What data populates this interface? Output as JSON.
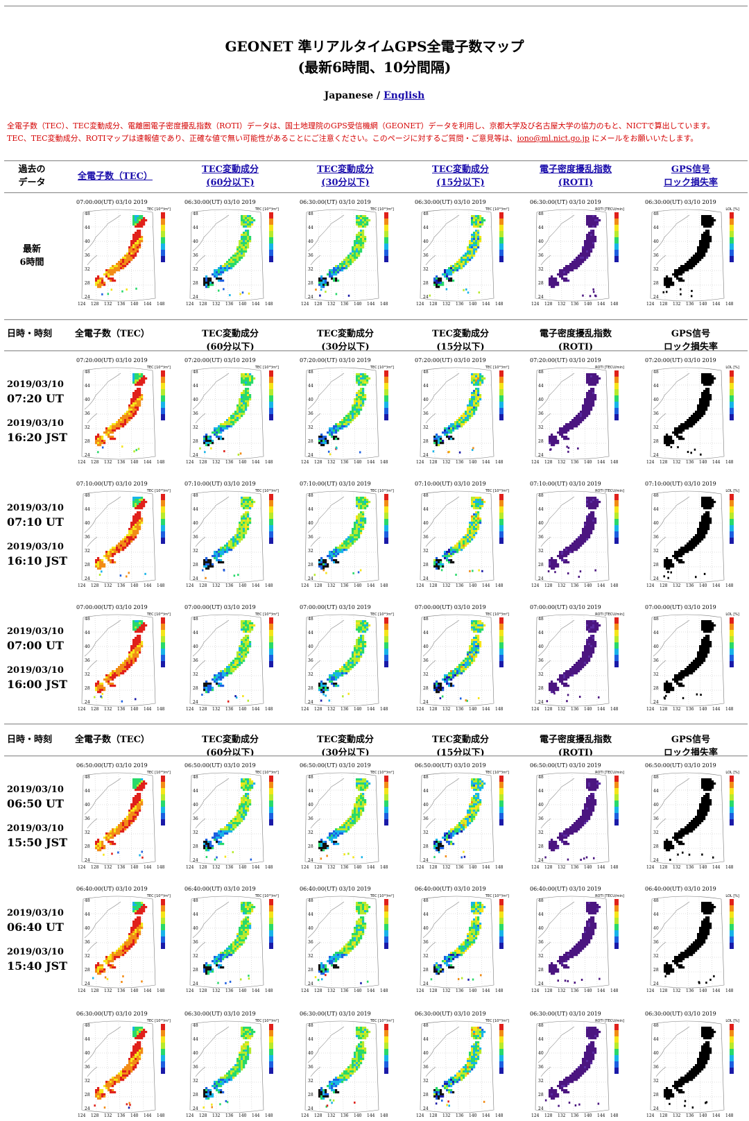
{
  "title": {
    "line1": "GEONET 準リアルタイムGPS全電子数マップ",
    "line2": "(最新6時間、10分間隔)"
  },
  "lang": {
    "current": "Japanese",
    "sep": " / ",
    "link": "English"
  },
  "notice": {
    "line1": "全電子数（TEC）、TEC変動成分、電離圏電子密度擾乱指数（ROTI）データは、国土地理院のGPS受信機網（GEONET）データを利用し、京都大学及び名古屋大学の協力のもと、NICTで算出しています。",
    "line2_pre": "TEC、TEC変動成分、ROTIマップは速報値であり、正確な値で無い可能性があることにご注意ください。このページに対するご質問・ご意見等は、",
    "email": "iono@ml.nict.go.jp",
    "line2_post": " にメールをお願いいたします。"
  },
  "past_header": {
    "label1": "過去の",
    "label2": "データ",
    "c1": "全電子数（TEC）",
    "c2a": "TEC変動成分",
    "c2b": "(60分以下)",
    "c3a": "TEC変動成分",
    "c3b": "(30分以下)",
    "c4a": "TEC変動成分",
    "c4b": "(15分以下)",
    "c5a": "電子密度擾乱指数",
    "c5b": "(ROTI)",
    "c6a": "GPS信号",
    "c6b": "ロック損失率"
  },
  "latest": {
    "label1": "最新",
    "label2": "6時間",
    "maps": [
      {
        "stamp": "07:00:00(UT)  03/10 2019",
        "unit": "TEC [10¹⁶/m²]"
      },
      {
        "stamp": "06:30:00(UT)  03/10 2019",
        "unit": "TEC [10¹⁶/m²]"
      },
      {
        "stamp": "06:30:00(UT)  03/10 2019",
        "unit": "TEC [10¹⁶/m²]"
      },
      {
        "stamp": "06:30:00(UT)  03/10 2019",
        "unit": "TEC [10¹⁶/m²]"
      },
      {
        "stamp": "06:30:00(UT)  03/10 2019",
        "unit": "ROTI [TECU/min]"
      },
      {
        "stamp": "06:30:00(UT)  03/10 2019",
        "unit": "LOL [%]"
      }
    ]
  },
  "col_header": {
    "h0": "日時・時刻",
    "c1": "全電子数（TEC）",
    "c2a": "TEC変動成分",
    "c2b": "(60分以下)",
    "c3a": "TEC変動成分",
    "c3b": "(30分以下)",
    "c4a": "TEC変動成分",
    "c4b": "(15分以下)",
    "c5a": "電子密度擾乱指数",
    "c5b": "(ROTI)",
    "c6a": "GPS信号",
    "c6b": "ロック損失率"
  },
  "rows": [
    {
      "ut_date": "2019/03/10",
      "ut": "07:20 UT",
      "jst_date": "2019/03/10",
      "jst": "16:20 JST",
      "stamp": "07:20:00(UT)  03/10 2019"
    },
    {
      "ut_date": "2019/03/10",
      "ut": "07:10 UT",
      "jst_date": "2019/03/10",
      "jst": "16:10 JST",
      "stamp": "07:10:00(UT)  03/10 2019"
    },
    {
      "ut_date": "2019/03/10",
      "ut": "07:00 UT",
      "jst_date": "2019/03/10",
      "jst": "16:00 JST",
      "stamp": "07:00:00(UT)  03/10 2019"
    },
    {
      "ut_date": "2019/03/10",
      "ut": "06:50 UT",
      "jst_date": "2019/03/10",
      "jst": "15:50 JST",
      "stamp": "06:50:00(UT)  03/10 2019"
    },
    {
      "ut_date": "2019/03/10",
      "ut": "06:40 UT",
      "jst_date": "2019/03/10",
      "jst": "15:40 JST",
      "stamp": "06:40:00(UT)  03/10 2019"
    }
  ],
  "partial_row": {
    "stamp": "06:30:00(UT)  03/10 2019"
  },
  "map_units": [
    "TEC [10¹⁶/m²]",
    "TEC [10¹⁶/m²]",
    "TEC [10¹⁶/m²]",
    "TEC [10¹⁶/m²]",
    "ROTI [TECU/min]",
    "LOL [%]"
  ],
  "axis": {
    "lat": [
      "48",
      "44",
      "40",
      "36",
      "32",
      "28",
      "24"
    ],
    "lon": [
      "124",
      "128",
      "132",
      "136",
      "140",
      "144",
      "148"
    ]
  },
  "map_kinds": [
    "tec",
    "tec60",
    "tec30",
    "tec15",
    "roti",
    "lol"
  ],
  "colors": {
    "link": "#1a0dab",
    "notice": "#d40000",
    "roti": "#4b1580",
    "lol": "#000000"
  }
}
